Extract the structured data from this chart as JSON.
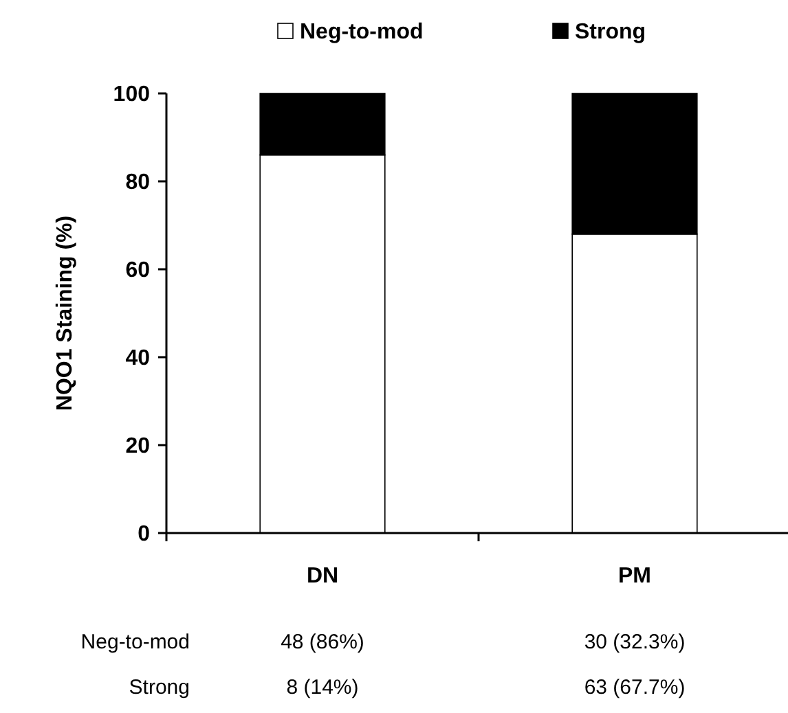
{
  "chart_data": {
    "type": "bar",
    "stacked": true,
    "ylabel": "NQO1 Staining (%)",
    "categories": [
      "DN",
      "PM"
    ],
    "series": [
      {
        "name": "Neg-to-mod",
        "color": "#ffffff",
        "values": [
          86,
          68
        ]
      },
      {
        "name": "Strong",
        "color": "#000000",
        "values": [
          14,
          32
        ]
      }
    ],
    "annotations": [
      "Neg-to-mod",
      "48 (86%)",
      "30 (32.3%)",
      "Strong",
      "8 (14%)",
      "63 (67.7%)"
    ],
    "ylim": [
      0,
      100
    ],
    "yticks": [
      0,
      20,
      40,
      60,
      80,
      100
    ],
    "grid": false,
    "legend": "top"
  }
}
